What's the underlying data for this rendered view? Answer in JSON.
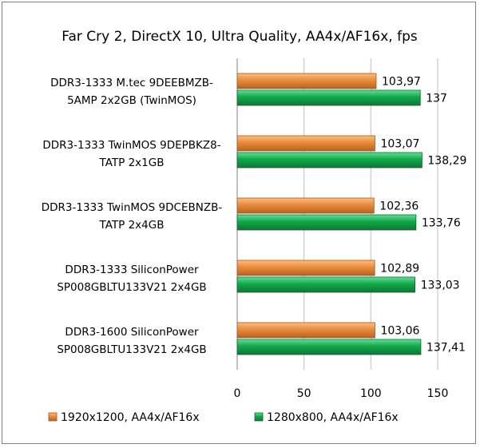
{
  "chart_data": {
    "type": "bar",
    "orientation": "horizontal",
    "title": "Far Cry 2, DirectX 10, Ultra Quality, AA4x/AF16x, fps",
    "categories": [
      [
        "DDR3-1333 M.tec 9DEEBMZB-",
        "5AMP 2x2GB (TwinMOS)"
      ],
      [
        "DDR3-1333 TwinMOS 9DEPBKZ8-",
        "TATP 2x1GB"
      ],
      [
        "DDR3-1333 TwinMOS 9DCEBNZB-",
        "TATP 2x4GB"
      ],
      [
        "DDR3-1333 SiliconPower",
        "SP008GBLTU133V21 2x4GB"
      ],
      [
        "DDR3-1600 SiliconPower",
        "SP008GBLTU133V21 2x4GB"
      ]
    ],
    "series": [
      {
        "name": "1920x1200, AA4x/AF16x",
        "color": "#e98b3c",
        "values": [
          103.97,
          103.07,
          102.36,
          102.89,
          103.06
        ],
        "labels": [
          "103,97",
          "103,07",
          "102,36",
          "102,89",
          "103,06"
        ]
      },
      {
        "name": "1280x800, AA4x/AF16x",
        "color": "#10a84a",
        "values": [
          137,
          138.29,
          133.76,
          133.03,
          137.41
        ],
        "labels": [
          "137",
          "138,29",
          "133,76",
          "133,03",
          "137,41"
        ]
      }
    ],
    "xlim": [
      0,
      150
    ],
    "xticks": [
      "0",
      "50",
      "100",
      "150"
    ],
    "legend": "bottom",
    "grid": true
  }
}
